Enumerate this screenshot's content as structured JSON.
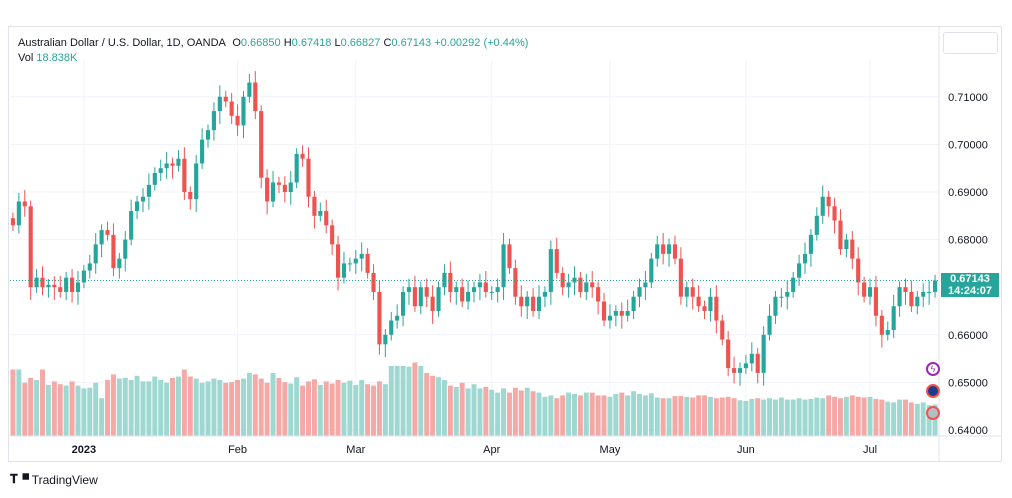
{
  "legend": {
    "symbol": "Australian Dollar / U.S. Dollar, 1D, OANDA",
    "o_label": "O",
    "o_value": "0.66850",
    "h_label": "H",
    "h_value": "0.67418",
    "l_label": "L",
    "l_value": "0.66827",
    "c_label": "C",
    "c_value": "0.67143",
    "change": "+0.00292 (+0.44%)",
    "vol_label": "Vol",
    "vol_value": "18.838K"
  },
  "price_tag": {
    "price": "0.67143",
    "countdown": "14:24:07"
  },
  "brand": "TradingView",
  "colors": {
    "up": "#26a69a",
    "down": "#ef5350",
    "vol_up": "#9ed8d1",
    "vol_down": "#f4a9a7",
    "grid": "#f0f3fa"
  },
  "chart_data": {
    "type": "candlestick",
    "title": "Australian Dollar / U.S. Dollar, 1D, OANDA",
    "ylim": [
      0.637,
      0.719
    ],
    "y_ticks": [
      "0.71000",
      "0.70000",
      "0.69000",
      "0.68000",
      "0.67000",
      "0.66000",
      "0.65000",
      "0.64000"
    ],
    "x_ticks": [
      {
        "label": "2023",
        "index": 12
      },
      {
        "label": "Feb",
        "index": 38
      },
      {
        "label": "Mar",
        "index": 58
      },
      {
        "label": "Apr",
        "index": 81
      },
      {
        "label": "May",
        "index": 101
      },
      {
        "label": "Jun",
        "index": 124
      },
      {
        "label": "Jul",
        "index": 145
      }
    ],
    "closes": [
      0.683,
      0.688,
      0.687,
      0.67,
      0.672,
      0.67,
      0.6705,
      0.67,
      0.669,
      0.672,
      0.669,
      0.671,
      0.6735,
      0.675,
      0.679,
      0.682,
      0.681,
      0.674,
      0.676,
      0.68,
      0.686,
      0.688,
      0.689,
      0.6915,
      0.694,
      0.695,
      0.696,
      0.6955,
      0.697,
      0.69,
      0.6885,
      0.696,
      0.701,
      0.703,
      0.707,
      0.71,
      0.709,
      0.706,
      0.704,
      0.71,
      0.713,
      0.707,
      0.693,
      0.688,
      0.692,
      0.6915,
      0.69,
      0.692,
      0.698,
      0.697,
      0.689,
      0.685,
      0.686,
      0.683,
      0.679,
      0.672,
      0.675,
      0.675,
      0.676,
      0.677,
      0.673,
      0.669,
      0.658,
      0.66,
      0.663,
      0.664,
      0.669,
      0.67,
      0.666,
      0.67,
      0.668,
      0.665,
      0.67,
      0.673,
      0.669,
      0.67,
      0.667,
      0.669,
      0.67,
      0.671,
      0.669,
      0.669,
      0.67,
      0.679,
      0.674,
      0.668,
      0.666,
      0.668,
      0.665,
      0.668,
      0.669,
      0.678,
      0.673,
      0.67,
      0.671,
      0.672,
      0.669,
      0.671,
      0.67,
      0.667,
      0.663,
      0.664,
      0.665,
      0.664,
      0.665,
      0.668,
      0.67,
      0.671,
      0.676,
      0.679,
      0.677,
      0.679,
      0.676,
      0.668,
      0.67,
      0.668,
      0.666,
      0.665,
      0.668,
      0.663,
      0.659,
      0.653,
      0.652,
      0.653,
      0.654,
      0.656,
      0.652,
      0.66,
      0.664,
      0.668,
      0.668,
      0.669,
      0.672,
      0.675,
      0.677,
      0.681,
      0.685,
      0.689,
      0.687,
      0.684,
      0.678,
      0.68,
      0.676,
      0.671,
      0.668,
      0.67,
      0.664,
      0.66,
      0.661,
      0.666,
      0.67,
      0.669,
      0.666,
      0.668,
      0.669,
      0.669,
      0.6714
    ],
    "volumes": [
      0.95,
      0.95,
      0.76,
      0.83,
      0.8,
      0.95,
      0.73,
      0.78,
      0.74,
      0.72,
      0.78,
      0.72,
      0.68,
      0.69,
      0.76,
      0.54,
      0.8,
      0.88,
      0.82,
      0.83,
      0.8,
      0.86,
      0.78,
      0.78,
      0.85,
      0.8,
      0.76,
      0.83,
      0.85,
      0.95,
      0.85,
      0.82,
      0.76,
      0.78,
      0.82,
      0.8,
      0.76,
      0.77,
      0.8,
      0.82,
      0.9,
      0.88,
      0.82,
      0.76,
      0.9,
      0.83,
      0.77,
      0.75,
      0.84,
      0.72,
      0.78,
      0.81,
      0.73,
      0.78,
      0.75,
      0.8,
      0.76,
      0.79,
      0.73,
      0.8,
      0.74,
      0.72,
      0.78,
      0.74,
      1.0,
      1.0,
      1.0,
      0.99,
      1.05,
      1.0,
      0.9,
      0.86,
      0.84,
      0.8,
      0.72,
      0.7,
      0.76,
      0.68,
      0.74,
      0.68,
      0.7,
      0.66,
      0.62,
      0.68,
      0.62,
      0.69,
      0.65,
      0.69,
      0.64,
      0.62,
      0.56,
      0.58,
      0.54,
      0.58,
      0.62,
      0.6,
      0.58,
      0.62,
      0.62,
      0.58,
      0.58,
      0.56,
      0.6,
      0.62,
      0.58,
      0.64,
      0.6,
      0.58,
      0.61,
      0.55,
      0.54,
      0.54,
      0.57,
      0.57,
      0.56,
      0.55,
      0.58,
      0.58,
      0.56,
      0.54,
      0.55,
      0.56,
      0.54,
      0.51,
      0.5,
      0.53,
      0.54,
      0.52,
      0.54,
      0.52,
      0.55,
      0.52,
      0.52,
      0.54,
      0.52,
      0.53,
      0.55,
      0.54,
      0.58,
      0.56,
      0.54,
      0.56,
      0.58,
      0.56,
      0.55,
      0.56,
      0.53,
      0.52,
      0.49,
      0.48,
      0.52,
      0.52,
      0.48,
      0.46,
      0.48,
      0.44,
      0.45,
      0.43,
      0.41
    ]
  }
}
